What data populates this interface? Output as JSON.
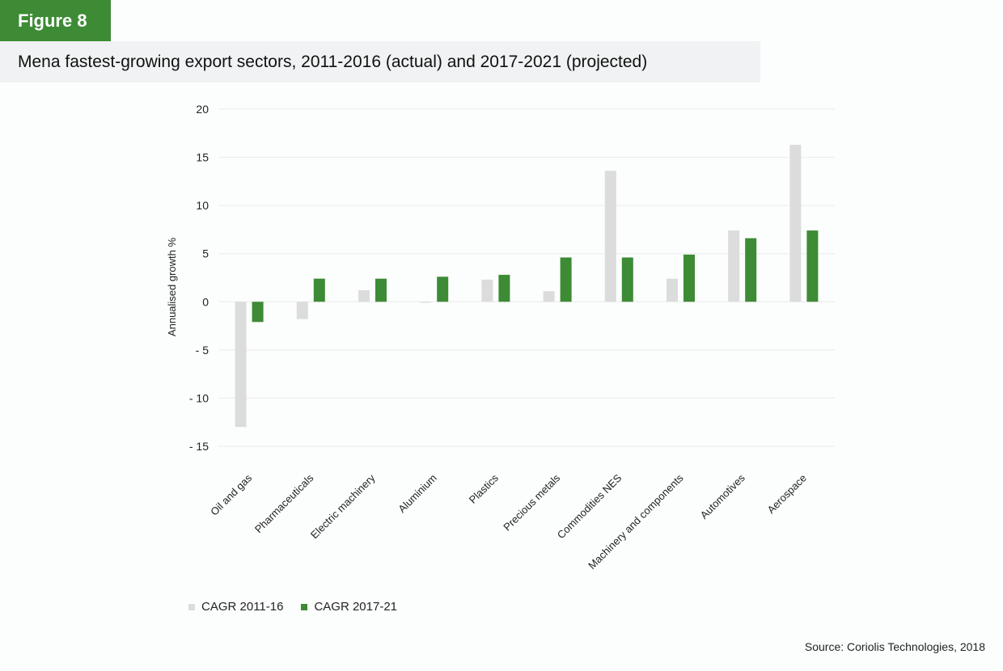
{
  "figure_label": "Figure 8",
  "title": "Mena fastest-growing export sectors, 2011-2016 (actual) and 2017-2021 (projected)",
  "source": "Source: Coriolis Technologies, 2018",
  "colors": {
    "series_2011_16": "#dcdcdc",
    "series_2017_21": "#3d8b35",
    "grid": "#eeeeee",
    "accent": "#3d8b35"
  },
  "chart_data": {
    "type": "bar",
    "title": "Mena fastest-growing export sectors, 2011-2016 (actual) and 2017-2021 (projected)",
    "xlabel": "",
    "ylabel": "Annualised growth %",
    "ylim": [
      -15,
      20
    ],
    "yticks": [
      20,
      15,
      10,
      5,
      0,
      -5,
      -10,
      -15
    ],
    "ytick_labels": [
      "20",
      "15",
      "10",
      "5",
      "0",
      "- 5",
      "- 10",
      "- 15"
    ],
    "grid": true,
    "legend_position": "bottom-left",
    "categories": [
      "Oil and gas",
      "Pharmaceuticals",
      "Electric machinery",
      "Aluminium",
      "Plastics",
      "Precious metals",
      "Commodities NES",
      "Machinery and components",
      "Automotives",
      "Aerospace"
    ],
    "series": [
      {
        "name": "CAGR 2011-16",
        "color": "#dcdcdc",
        "values": [
          -13.0,
          -1.8,
          1.2,
          -0.1,
          2.3,
          1.1,
          13.6,
          2.4,
          7.4,
          16.3
        ]
      },
      {
        "name": "CAGR 2017-21",
        "color": "#3d8b35",
        "values": [
          -2.1,
          2.4,
          2.4,
          2.6,
          2.8,
          4.6,
          4.6,
          4.9,
          6.6,
          7.4
        ]
      }
    ]
  }
}
